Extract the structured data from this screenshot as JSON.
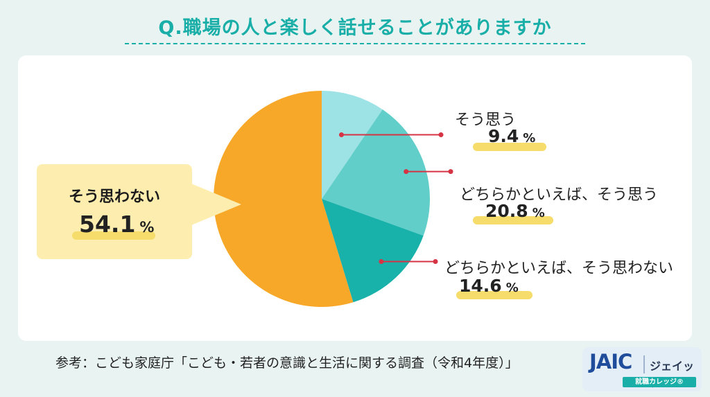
{
  "page": {
    "title": "Q.職場の人と楽しく話せることがありますか",
    "source": "参考：こども家庭庁「こども・若者の意識と生活に関する調査（令和4年度）」"
  },
  "logo": {
    "mark": "JAIC",
    "kana": "ジェイック",
    "sub": "就職カレッジ®"
  },
  "chart_data": {
    "type": "pie",
    "unit": "%",
    "slices": [
      {
        "label": "そう思う",
        "value": 9.4,
        "value_text": "9.4",
        "color": "#9de3e6"
      },
      {
        "label": "どちらかといえば、そう思う",
        "value": 20.8,
        "value_text": "20.8",
        "color": "#62cec9"
      },
      {
        "label": "どちらかといえば、そう思わない",
        "value": 14.6,
        "value_text": "14.6",
        "color": "#19b2ab"
      },
      {
        "label": "そう思わない",
        "value": 54.1,
        "value_text": "54.1",
        "color": "#f8a829"
      }
    ],
    "leader_color": "#d63344"
  }
}
